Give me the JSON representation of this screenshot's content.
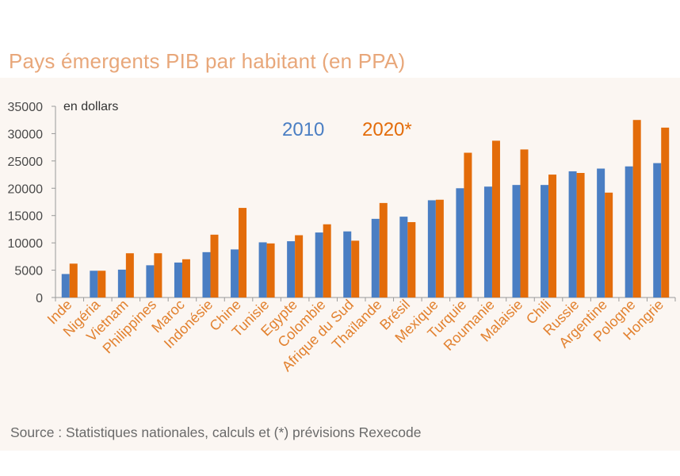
{
  "title": "Pays émergents PIB par habitant (en PPA)",
  "source": "Source : Statistiques nationales, calculs et (*) prévisions Rexecode",
  "colors": {
    "series_2010": "#4A7EC3",
    "series_2020": "#E36C0A",
    "title": "#E8A77A",
    "panel": "#FBF6F2"
  },
  "chart_data": {
    "type": "bar",
    "title": "Pays émergents PIB par habitant (en PPA)",
    "unit_label": "en dollars",
    "ylim": [
      0,
      35000
    ],
    "yticks": [
      "0",
      "5000",
      "10000",
      "15000",
      "20000",
      "25000",
      "30000",
      "35000"
    ],
    "grid": false,
    "legend_position": "top-center",
    "categories": [
      "Inde",
      "Nigéria",
      "Vietnam",
      "Philippines",
      "Maroc",
      "Indonésie",
      "Chine",
      "Tunisie",
      "Egypte",
      "Colombie",
      "Afrique du Sud",
      "Thaïlande",
      "Brésil",
      "Mexique",
      "Turquie",
      "Roumanie",
      "Malaisie",
      "Chili",
      "Russie",
      "Argentine",
      "Pologne",
      "Hongrie"
    ],
    "series": [
      {
        "name": "2010",
        "values": [
          4300,
          4900,
          5100,
          5900,
          6400,
          8300,
          8800,
          10100,
          10300,
          11900,
          12100,
          14400,
          14800,
          17800,
          20000,
          20300,
          20600,
          20600,
          23100,
          23600,
          24000,
          24600
        ]
      },
      {
        "name": "2020*",
        "values": [
          6200,
          4900,
          8100,
          8100,
          7000,
          11500,
          16400,
          9900,
          11400,
          13400,
          10400,
          17300,
          13800,
          17900,
          26500,
          28700,
          27100,
          22500,
          22800,
          19200,
          32500,
          31100
        ]
      }
    ]
  }
}
